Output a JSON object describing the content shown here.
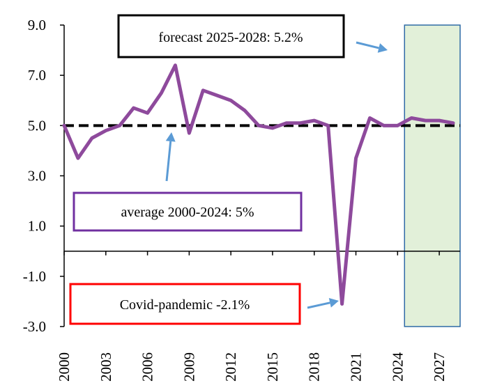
{
  "chart_data": {
    "type": "line",
    "title": "",
    "xlabel": "",
    "ylabel": "",
    "xlim": [
      2000,
      2028.5
    ],
    "ylim": [
      -3.0,
      9.0
    ],
    "grid": false,
    "legend": "none",
    "y_ticks": [
      9.0,
      7.0,
      5.0,
      3.0,
      1.0,
      -1.0,
      -3.0
    ],
    "y_tick_labels": [
      "9.0",
      "7.0",
      "5.0",
      "3.0",
      "1.0",
      "-1.0",
      "-3.0"
    ],
    "x_ticks": [
      2000,
      2003,
      2006,
      2009,
      2012,
      2015,
      2018,
      2021,
      2024,
      2027
    ],
    "x_tick_labels": [
      "2000",
      "2003",
      "2006",
      "2009",
      "2012",
      "2015",
      "2018",
      "2021",
      "2024",
      "2027"
    ],
    "series": [
      {
        "color": "#8e4a9c",
        "x": [
          2000,
          2001,
          2002,
          2003,
          2004,
          2005,
          2006,
          2007,
          2008,
          2009,
          2010,
          2011,
          2012,
          2013,
          2014,
          2015,
          2016,
          2017,
          2018,
          2019,
          2020,
          2021,
          2022,
          2023,
          2024,
          2025,
          2026,
          2027,
          2028
        ],
        "y": [
          5.0,
          3.7,
          4.5,
          4.8,
          5.0,
          5.7,
          5.5,
          6.3,
          7.4,
          4.7,
          6.4,
          6.2,
          6.0,
          5.6,
          5.0,
          4.9,
          5.1,
          5.1,
          5.2,
          5.0,
          -2.1,
          3.7,
          5.3,
          5.0,
          5.0,
          5.3,
          5.2,
          5.2,
          5.1
        ]
      }
    ],
    "average_line": {
      "value": 5.0,
      "x_range": [
        2000,
        2028.5
      ],
      "style": "dashed",
      "color": "#000000"
    },
    "forecast_region": {
      "x_range": [
        2024.5,
        2028.5
      ],
      "fill": "#e2f0d9",
      "stroke": "#2e6aa6"
    },
    "annotations": {
      "forecast": {
        "text": "forecast 2025-2028: 5.2%",
        "border": "#000000"
      },
      "average": {
        "text": "average 2000-2024: 5%",
        "border": "#7030a0"
      },
      "covid": {
        "text": "Covid-pandemic -2.1%",
        "border": "#ff0000"
      },
      "arrow_color": "#5b9bd5"
    }
  }
}
